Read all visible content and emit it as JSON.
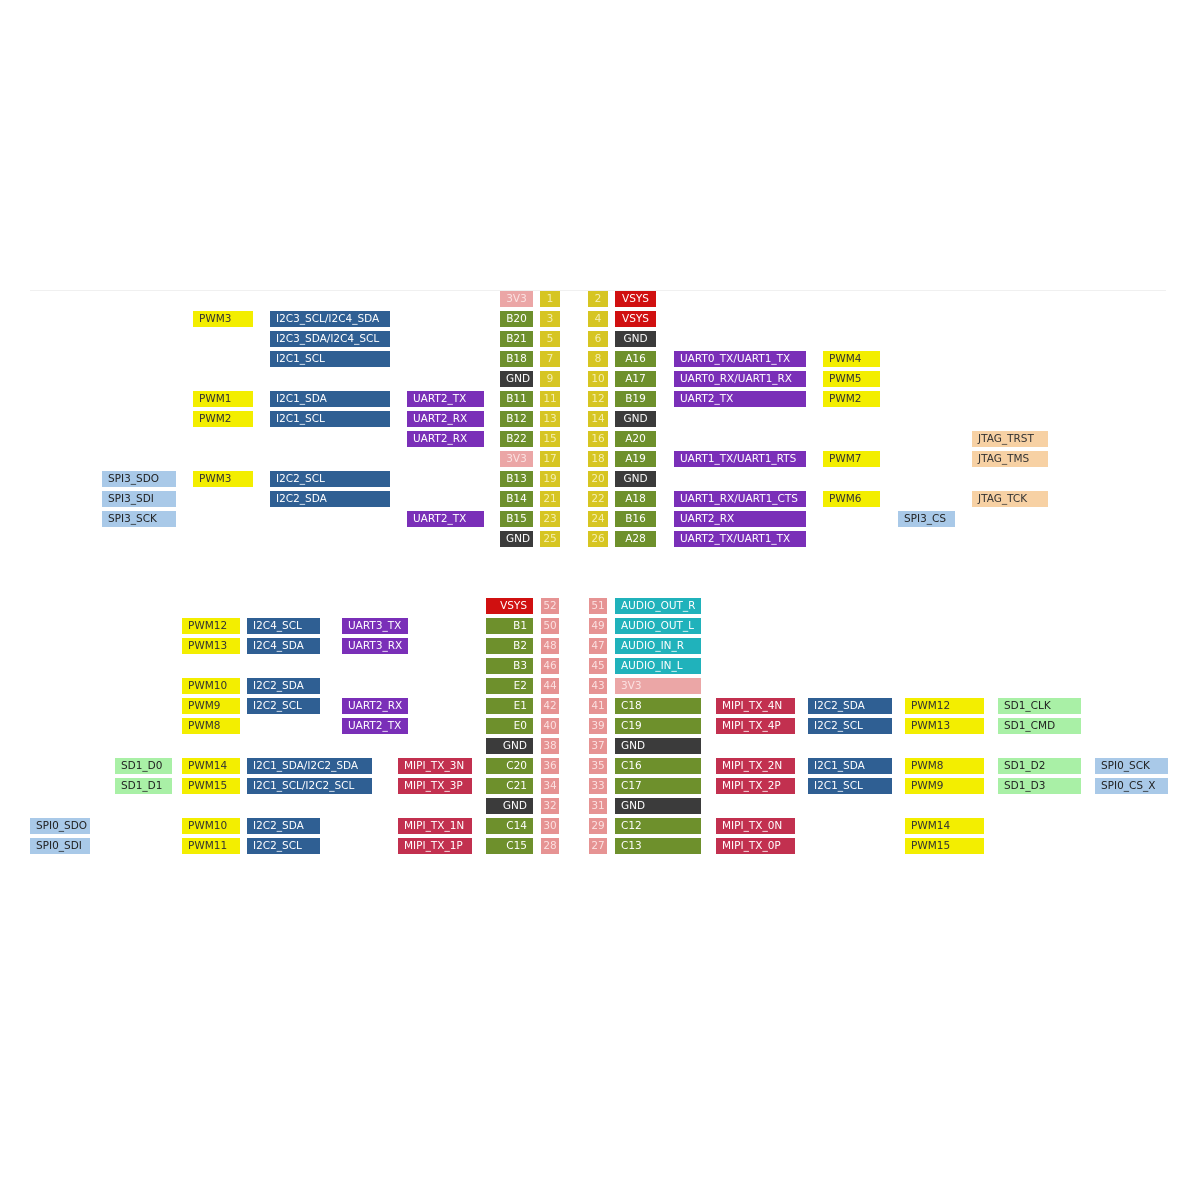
{
  "colors": {
    "pwm": "#f3ee00",
    "i2c": "#2f5f93",
    "uart": "#7a2fb8",
    "spi": "#a9c9e8",
    "sd": "#a9f0a6",
    "jtag": "#f7d1a4",
    "mipi": "#c2304f",
    "gnd": "#3b3b3b",
    "vsys": "#d01010",
    "3v3": "#eba6a6",
    "audio": "#20b2bb",
    "gpio": "#6e902c"
  },
  "header_top": [
    {
      "l": [
        "",
        "",
        "",
        ""
      ],
      "pin": "3V3",
      "n": "1",
      "rn": "2",
      "rpin": "VSYS",
      "r": [
        "",
        "",
        "",
        ""
      ]
    },
    {
      "l": [
        "",
        "PWM3",
        "I2C3_SCL/I2C4_SDA",
        ""
      ],
      "pin": "B20",
      "n": "3",
      "rn": "4",
      "rpin": "VSYS",
      "r": [
        "",
        "",
        "",
        ""
      ]
    },
    {
      "l": [
        "",
        "",
        "I2C3_SDA/I2C4_SCL",
        ""
      ],
      "pin": "B21",
      "n": "5",
      "rn": "6",
      "rpin": "GND",
      "r": [
        "",
        "",
        "",
        ""
      ]
    },
    {
      "l": [
        "",
        "",
        "I2C1_SCL",
        ""
      ],
      "pin": "B18",
      "n": "7",
      "rn": "8",
      "rpin": "A16",
      "r": [
        "UART0_TX/UART1_TX",
        "PWM4",
        "",
        ""
      ]
    },
    {
      "l": [
        "",
        "",
        "",
        ""
      ],
      "pin": "GND",
      "n": "9",
      "rn": "10",
      "rpin": "A17",
      "r": [
        "UART0_RX/UART1_RX",
        "PWM5",
        "",
        ""
      ]
    },
    {
      "l": [
        "",
        "PWM1",
        "I2C1_SDA",
        "UART2_TX"
      ],
      "pin": "B11",
      "n": "11",
      "rn": "12",
      "rpin": "B19",
      "r": [
        "UART2_TX",
        "PWM2",
        "",
        ""
      ]
    },
    {
      "l": [
        "",
        "PWM2",
        "I2C1_SCL",
        "UART2_RX"
      ],
      "pin": "B12",
      "n": "13",
      "rn": "14",
      "rpin": "GND",
      "r": [
        "",
        "",
        "",
        ""
      ]
    },
    {
      "l": [
        "",
        "",
        "",
        "UART2_RX"
      ],
      "pin": "B22",
      "n": "15",
      "rn": "16",
      "rpin": "A20",
      "r": [
        "",
        "",
        "",
        "JTAG_TRST"
      ]
    },
    {
      "l": [
        "",
        "",
        "",
        ""
      ],
      "pin": "3V3",
      "n": "17",
      "rn": "18",
      "rpin": "A19",
      "r": [
        "UART1_TX/UART1_RTS",
        "PWM7",
        "",
        "JTAG_TMS"
      ]
    },
    {
      "l": [
        "SPI3_SDO",
        "PWM3",
        "I2C2_SCL",
        ""
      ],
      "pin": "B13",
      "n": "19",
      "rn": "20",
      "rpin": "GND",
      "r": [
        "",
        "",
        "",
        ""
      ]
    },
    {
      "l": [
        "SPI3_SDI",
        "",
        "I2C2_SDA",
        ""
      ],
      "pin": "B14",
      "n": "21",
      "rn": "22",
      "rpin": "A18",
      "r": [
        "UART1_RX/UART1_CTS",
        "PWM6",
        "",
        "JTAG_TCK"
      ]
    },
    {
      "l": [
        "SPI3_SCK",
        "",
        "",
        "UART2_TX"
      ],
      "pin": "B15",
      "n": "23",
      "rn": "24",
      "rpin": "B16",
      "r": [
        "UART2_RX",
        "",
        "SPI3_CS",
        ""
      ]
    },
    {
      "l": [
        "",
        "",
        "",
        ""
      ],
      "pin": "GND",
      "n": "25",
      "rn": "26",
      "rpin": "A28",
      "r": [
        "UART2_TX/UART1_TX",
        "",
        "",
        ""
      ]
    }
  ],
  "header_bottom": [
    {
      "l": [
        "",
        "",
        "",
        "",
        "",
        ""
      ],
      "pin": "VSYS",
      "n": "52",
      "rn": "51",
      "rpin": "AUDIO_OUT_R",
      "r": [
        "",
        "",
        "",
        "",
        ""
      ]
    },
    {
      "l": [
        "",
        "",
        "PWM12",
        "I2C4_SCL",
        "UART3_TX",
        ""
      ],
      "pin": "B1",
      "n": "50",
      "rn": "49",
      "rpin": "AUDIO_OUT_L",
      "r": [
        "",
        "",
        "",
        "",
        ""
      ]
    },
    {
      "l": [
        "",
        "",
        "PWM13",
        "I2C4_SDA",
        "UART3_RX",
        ""
      ],
      "pin": "B2",
      "n": "48",
      "rn": "47",
      "rpin": "AUDIO_IN_R",
      "r": [
        "",
        "",
        "",
        "",
        ""
      ]
    },
    {
      "l": [
        "",
        "",
        "",
        "",
        "",
        ""
      ],
      "pin": "B3",
      "n": "46",
      "rn": "45",
      "rpin": "AUDIO_IN_L",
      "r": [
        "",
        "",
        "",
        "",
        ""
      ]
    },
    {
      "l": [
        "",
        "",
        "PWM10",
        "I2C2_SDA",
        "",
        ""
      ],
      "pin": "E2",
      "n": "44",
      "rn": "43",
      "rpin": "3V3",
      "r": [
        "",
        "",
        "",
        "",
        ""
      ]
    },
    {
      "l": [
        "",
        "",
        "PWM9",
        "I2C2_SCL",
        "UART2_RX",
        ""
      ],
      "pin": "E1",
      "n": "42",
      "rn": "41",
      "rpin": "C18",
      "r": [
        "MIPI_TX_4N",
        "I2C2_SDA",
        "PWM12",
        "SD1_CLK",
        ""
      ]
    },
    {
      "l": [
        "",
        "",
        "PWM8",
        "",
        "UART2_TX",
        ""
      ],
      "pin": "E0",
      "n": "40",
      "rn": "39",
      "rpin": "C19",
      "r": [
        "MIPI_TX_4P",
        "I2C2_SCL",
        "PWM13",
        "SD1_CMD",
        ""
      ]
    },
    {
      "l": [
        "",
        "",
        "",
        "",
        "",
        ""
      ],
      "pin": "GND",
      "n": "38",
      "rn": "37",
      "rpin": "GND",
      "r": [
        "",
        "",
        "",
        "",
        ""
      ]
    },
    {
      "l": [
        "",
        "SD1_D0",
        "PWM14",
        "I2C1_SDA/I2C2_SDA",
        "",
        "MIPI_TX_3N"
      ],
      "pin": "C20",
      "n": "36",
      "rn": "35",
      "rpin": "C16",
      "r": [
        "MIPI_TX_2N",
        "I2C1_SDA",
        "PWM8",
        "SD1_D2",
        "SPI0_SCK"
      ]
    },
    {
      "l": [
        "",
        "SD1_D1",
        "PWM15",
        "I2C1_SCL/I2C2_SCL",
        "",
        "MIPI_TX_3P"
      ],
      "pin": "C21",
      "n": "34",
      "rn": "33",
      "rpin": "C17",
      "r": [
        "MIPI_TX_2P",
        "I2C1_SCL",
        "PWM9",
        "SD1_D3",
        "SPI0_CS_X"
      ]
    },
    {
      "l": [
        "",
        "",
        "",
        "",
        "",
        ""
      ],
      "pin": "GND",
      "n": "32",
      "rn": "31",
      "rpin": "GND",
      "r": [
        "",
        "",
        "",
        "",
        ""
      ]
    },
    {
      "l": [
        "SPI0_SDO",
        "",
        "PWM10",
        "I2C2_SDA",
        "",
        "MIPI_TX_1N"
      ],
      "pin": "C14",
      "n": "30",
      "rn": "29",
      "rpin": "C12",
      "r": [
        "MIPI_TX_0N",
        "",
        "PWM14",
        "",
        ""
      ]
    },
    {
      "l": [
        "SPI0_SDI",
        "",
        "PWM11",
        "I2C2_SCL",
        "",
        "MIPI_TX_1P"
      ],
      "pin": "C15",
      "n": "28",
      "rn": "27",
      "rpin": "C13",
      "r": [
        "MIPI_TX_0P",
        "",
        "PWM15",
        "",
        ""
      ]
    }
  ]
}
